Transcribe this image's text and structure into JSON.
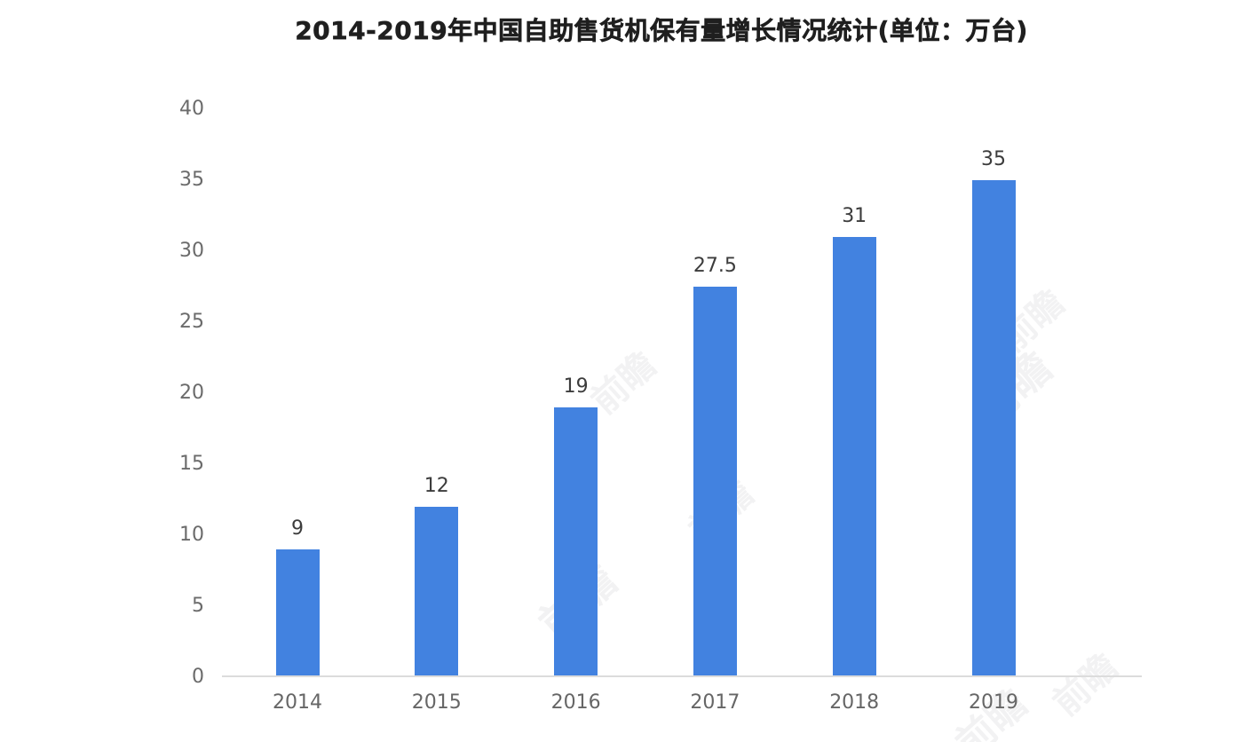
{
  "title": "2014-2019年中国自助售货机保有量增长情况统计(单位：万台)",
  "chart_data": {
    "type": "bar",
    "title": "2014-2019年中国自助售货机保有量增长情况统计(单位：万台)",
    "categories": [
      "2014",
      "2015",
      "2016",
      "2017",
      "2018",
      "2019"
    ],
    "values": [
      9,
      12,
      19,
      27.5,
      31,
      35
    ],
    "value_labels": [
      "9",
      "12",
      "19",
      "27.5",
      "31",
      "35"
    ],
    "xlabel": "",
    "ylabel": "",
    "ylim": [
      0,
      40
    ],
    "yticks": [
      0,
      5,
      10,
      15,
      20,
      25,
      30,
      35,
      40
    ],
    "grid": false,
    "legend_position": "none",
    "unit": "万台",
    "bar_color": "#4282E0",
    "axis_line_color": "#DCDCDC",
    "y_tick_label_color": "#6B6B6B",
    "x_tick_label_color": "#666666",
    "value_label_color": "#3C3C3C",
    "title_color": "#1F1F1F",
    "background_color": "#FFFFFF"
  },
  "watermark": {
    "text": "前瞻"
  }
}
